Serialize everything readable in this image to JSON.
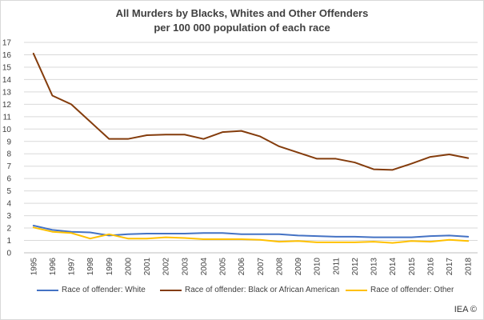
{
  "chart_data": {
    "type": "line",
    "title_line1": "All Murders by Blacks, Whites and Other Offenders",
    "title_line2": "per 100 000 population of each race",
    "xlabel": "",
    "ylabel": "",
    "x": [
      "1995",
      "1996",
      "1997",
      "1998",
      "1999",
      "2000",
      "2001",
      "2002",
      "2003",
      "2004",
      "2005",
      "2006",
      "2007",
      "2008",
      "2009",
      "2010",
      "2011",
      "2012",
      "2013",
      "2014",
      "2015",
      "2016",
      "2017",
      "2018"
    ],
    "y_ticks": [
      0,
      1,
      2,
      3,
      4,
      5,
      6,
      7,
      8,
      9,
      10,
      11,
      12,
      13,
      14,
      15,
      16,
      17
    ],
    "ylim": [
      0,
      17
    ],
    "grid": "horizontal",
    "legend_position": "bottom",
    "series": [
      {
        "name": "Race of offender: White",
        "color": "#4472c4",
        "values": [
          2.2,
          1.85,
          1.7,
          1.65,
          1.4,
          1.5,
          1.55,
          1.55,
          1.55,
          1.6,
          1.6,
          1.5,
          1.5,
          1.5,
          1.4,
          1.35,
          1.3,
          1.3,
          1.25,
          1.25,
          1.25,
          1.35,
          1.4,
          1.3
        ]
      },
      {
        "name": "Race of offender: Black or African American",
        "color": "#843c0c",
        "values": [
          16.1,
          12.7,
          12.0,
          10.6,
          9.2,
          9.2,
          9.5,
          9.55,
          9.55,
          9.2,
          9.75,
          9.85,
          9.4,
          8.6,
          8.1,
          7.6,
          7.6,
          7.3,
          6.75,
          6.7,
          7.2,
          7.75,
          7.95,
          7.65
        ]
      },
      {
        "name": "Race of offender: Other",
        "color": "#ffc000",
        "values": [
          2.05,
          1.7,
          1.6,
          1.15,
          1.5,
          1.15,
          1.15,
          1.25,
          1.2,
          1.1,
          1.1,
          1.1,
          1.05,
          0.9,
          0.95,
          0.85,
          0.85,
          0.85,
          0.9,
          0.8,
          0.95,
          0.9,
          1.05,
          0.95
        ]
      }
    ]
  },
  "watermark": "IEA ©"
}
